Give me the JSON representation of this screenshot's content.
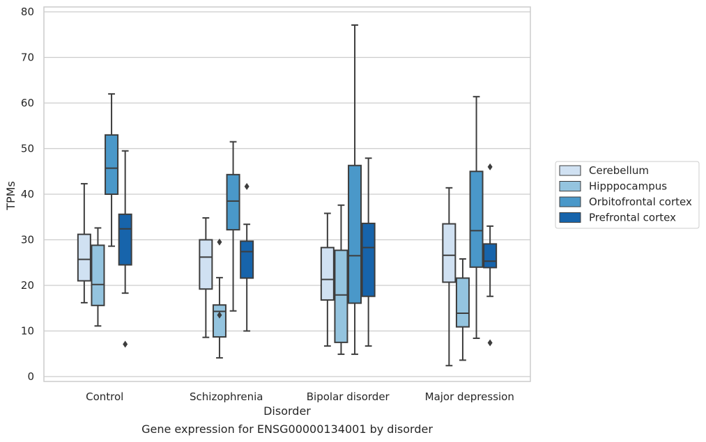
{
  "chart_data": {
    "type": "box",
    "title": "",
    "caption": "Gene expression for ENSG00000134001 by disorder",
    "xlabel": "Disorder",
    "ylabel": "TPMs",
    "ylim": [
      -1,
      81
    ],
    "yticks": [
      0,
      10,
      20,
      30,
      40,
      50,
      60,
      70,
      80
    ],
    "grid": "horizontal",
    "legend_position": "right",
    "categories": [
      "Control",
      "Schizophrenia",
      "Bipolar disorder",
      "Major depression"
    ],
    "series": [
      {
        "name": "Cerebellum",
        "color": "#d0e1f2",
        "boxes": [
          {
            "whislo": 16.2,
            "q1": 21.0,
            "med": 25.7,
            "q3": 31.2,
            "whishi": 42.3,
            "fliers": []
          },
          {
            "whislo": 8.6,
            "q1": 19.2,
            "med": 26.2,
            "q3": 30.0,
            "whishi": 34.8,
            "fliers": []
          },
          {
            "whislo": 6.7,
            "q1": 16.8,
            "med": 21.3,
            "q3": 28.3,
            "whishi": 35.8,
            "fliers": []
          },
          {
            "whislo": 2.4,
            "q1": 20.7,
            "med": 26.6,
            "q3": 33.5,
            "whishi": 41.4,
            "fliers": []
          }
        ]
      },
      {
        "name": "Hipppocampus",
        "color": "#94c4df",
        "boxes": [
          {
            "whislo": 11.1,
            "q1": 15.6,
            "med": 20.2,
            "q3": 28.8,
            "whishi": 32.6,
            "fliers": []
          },
          {
            "whislo": 4.1,
            "q1": 8.7,
            "med": 14.3,
            "q3": 15.7,
            "whishi": 21.7,
            "fliers": [
              29.5,
              13.5
            ]
          },
          {
            "whislo": 4.9,
            "q1": 7.5,
            "med": 17.9,
            "q3": 27.7,
            "whishi": 37.6,
            "fliers": []
          },
          {
            "whislo": 3.6,
            "q1": 10.9,
            "med": 13.9,
            "q3": 21.6,
            "whishi": 25.8,
            "fliers": []
          }
        ]
      },
      {
        "name": "Orbitofrontal cortex",
        "color": "#4a98c9",
        "boxes": [
          {
            "whislo": 28.6,
            "q1": 40.0,
            "med": 45.7,
            "q3": 53.0,
            "whishi": 62.0,
            "fliers": []
          },
          {
            "whislo": 14.4,
            "q1": 32.2,
            "med": 38.5,
            "q3": 44.3,
            "whishi": 51.5,
            "fliers": []
          },
          {
            "whislo": 4.9,
            "q1": 16.1,
            "med": 26.5,
            "q3": 46.3,
            "whishi": 77.1,
            "fliers": []
          },
          {
            "whislo": 8.4,
            "q1": 24.0,
            "med": 32.0,
            "q3": 45.0,
            "whishi": 61.4,
            "fliers": []
          }
        ]
      },
      {
        "name": "Prefrontal cortex",
        "color": "#1764ab",
        "boxes": [
          {
            "whislo": 18.3,
            "q1": 24.5,
            "med": 32.4,
            "q3": 35.6,
            "whishi": 49.5,
            "fliers": [
              7.1
            ]
          },
          {
            "whislo": 10.0,
            "q1": 21.6,
            "med": 27.4,
            "q3": 29.7,
            "whishi": 33.4,
            "fliers": [
              41.7
            ]
          },
          {
            "whislo": 6.7,
            "q1": 17.6,
            "med": 28.3,
            "q3": 33.6,
            "whishi": 47.9,
            "fliers": []
          },
          {
            "whislo": 17.6,
            "q1": 23.9,
            "med": 25.3,
            "q3": 29.1,
            "whishi": 33.0,
            "fliers": [
              46.0,
              7.4
            ]
          }
        ]
      }
    ]
  }
}
